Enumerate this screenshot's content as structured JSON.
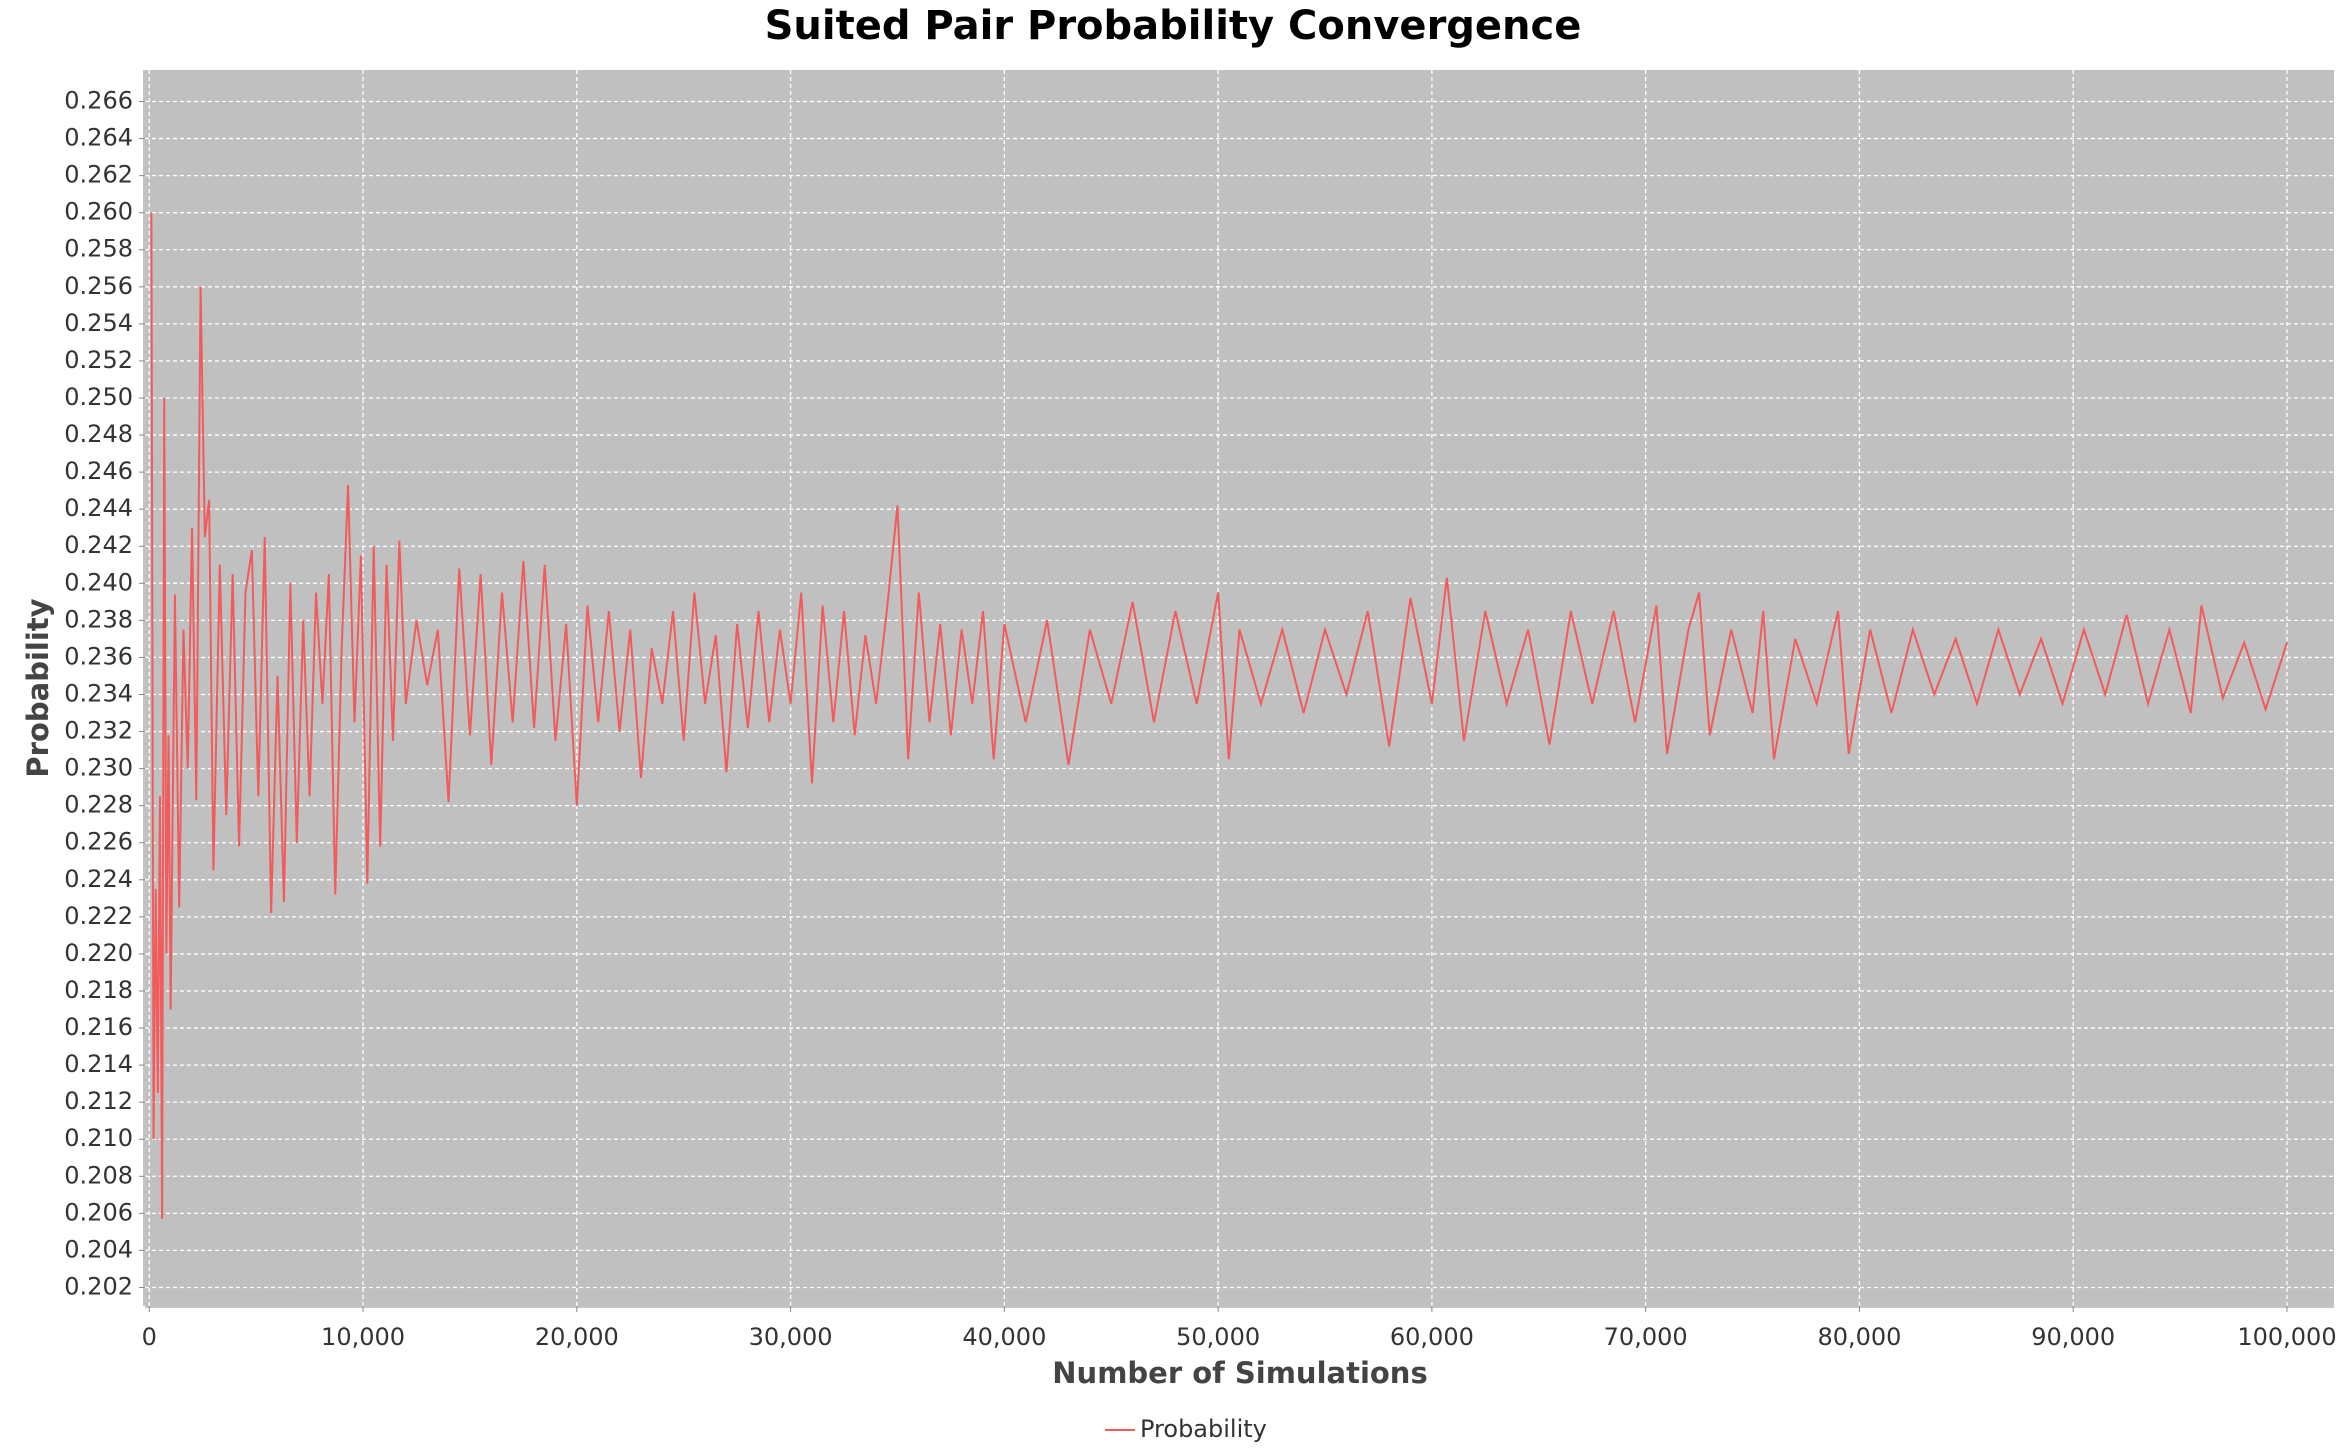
{
  "chart_data": {
    "type": "line",
    "title": "Suited Pair Probability Convergence",
    "x_label": "Number of Simulations",
    "y_label": "Probability",
    "x": [
      100,
      200,
      300,
      400,
      500,
      600,
      700,
      800,
      900,
      1000,
      1200,
      1400,
      1600,
      1800,
      2000,
      2200,
      2400,
      2600,
      2800,
      3000,
      3300,
      3600,
      3900,
      4200,
      4500,
      4800,
      5100,
      5400,
      5700,
      6000,
      6300,
      6600,
      6900,
      7200,
      7500,
      7800,
      8100,
      8400,
      8700,
      9000,
      9300,
      9600,
      9900,
      10200,
      10500,
      10800,
      11100,
      11400,
      11700,
      12000,
      12500,
      13000,
      13500,
      14000,
      14500,
      15000,
      15500,
      16000,
      16500,
      17000,
      17500,
      18000,
      18500,
      19000,
      19500,
      20000,
      20500,
      21000,
      21500,
      22000,
      22500,
      23000,
      23500,
      24000,
      24500,
      25000,
      25500,
      26000,
      26500,
      27000,
      27500,
      28000,
      28500,
      29000,
      29500,
      30000,
      30500,
      31000,
      31500,
      32000,
      32500,
      33000,
      33500,
      34000,
      34500,
      35000,
      35500,
      36000,
      36500,
      37000,
      37500,
      38000,
      38500,
      39000,
      39500,
      40000,
      41000,
      42000,
      43000,
      44000,
      45000,
      46000,
      47000,
      48000,
      49000,
      50000,
      50500,
      51000,
      52000,
      53000,
      54000,
      55000,
      56000,
      57000,
      58000,
      59000,
      60000,
      60700,
      61500,
      62500,
      63500,
      64500,
      65500,
      66500,
      67500,
      68500,
      69500,
      70500,
      71000,
      72000,
      72500,
      73000,
      74000,
      75000,
      75500,
      76000,
      77000,
      78000,
      79000,
      79500,
      80500,
      81500,
      82500,
      83500,
      84500,
      85500,
      86500,
      87500,
      88500,
      89500,
      90500,
      91500,
      92500,
      93500,
      94500,
      95500,
      96000,
      97000,
      98000,
      99000,
      100000
    ],
    "series": [
      {
        "name": "Probability",
        "color": "#f25b5b",
        "values": [
          0.26,
          0.21,
          0.2235,
          0.2125,
          0.2285,
          0.2057,
          0.25,
          0.22,
          0.2318,
          0.217,
          0.2394,
          0.2225,
          0.2375,
          0.23,
          0.243,
          0.2283,
          0.256,
          0.2425,
          0.2445,
          0.2245,
          0.241,
          0.2275,
          0.2405,
          0.2258,
          0.2395,
          0.2418,
          0.2285,
          0.2425,
          0.2222,
          0.235,
          0.2228,
          0.24,
          0.226,
          0.238,
          0.2285,
          0.2395,
          0.2335,
          0.2405,
          0.2232,
          0.2365,
          0.2453,
          0.2325,
          0.2415,
          0.2238,
          0.242,
          0.2258,
          0.241,
          0.2315,
          0.2423,
          0.2335,
          0.238,
          0.2345,
          0.2375,
          0.2282,
          0.2408,
          0.2318,
          0.2405,
          0.2302,
          0.2395,
          0.2325,
          0.2412,
          0.2322,
          0.241,
          0.2315,
          0.2378,
          0.228,
          0.2388,
          0.2325,
          0.2385,
          0.232,
          0.2375,
          0.2295,
          0.2365,
          0.2335,
          0.2385,
          0.2315,
          0.2395,
          0.2335,
          0.2372,
          0.2298,
          0.2378,
          0.2322,
          0.2385,
          0.2325,
          0.2375,
          0.2335,
          0.2395,
          0.2292,
          0.2388,
          0.2325,
          0.2385,
          0.2318,
          0.2372,
          0.2335,
          0.2385,
          0.2442,
          0.2305,
          0.2395,
          0.2325,
          0.2378,
          0.2318,
          0.2375,
          0.2335,
          0.2385,
          0.2305,
          0.2378,
          0.2325,
          0.238,
          0.2302,
          0.2375,
          0.2335,
          0.239,
          0.2325,
          0.2385,
          0.2335,
          0.2395,
          0.2305,
          0.2375,
          0.2335,
          0.2375,
          0.233,
          0.2375,
          0.234,
          0.2385,
          0.2312,
          0.2392,
          0.2335,
          0.2403,
          0.2315,
          0.2385,
          0.2335,
          0.2375,
          0.2313,
          0.2385,
          0.2335,
          0.2385,
          0.2325,
          0.2388,
          0.2308,
          0.2375,
          0.2395,
          0.2318,
          0.2375,
          0.233,
          0.2385,
          0.2305,
          0.237,
          0.2335,
          0.2385,
          0.2308,
          0.2375,
          0.233,
          0.2375,
          0.234,
          0.237,
          0.2335,
          0.2375,
          0.234,
          0.237,
          0.2335,
          0.2375,
          0.234,
          0.2383,
          0.2335,
          0.2375,
          0.233,
          0.2388,
          0.2338,
          0.2368,
          0.2332,
          0.2368
        ]
      }
    ],
    "xlim": [
      -200,
      102200
    ],
    "ylim": [
      0.201,
      0.2677
    ],
    "xticks": [
      0,
      {
        "value": 10000,
        "label": "10,000"
      },
      {
        "value": 20000,
        "label": "20,000"
      },
      {
        "value": 30000,
        "label": "30,000"
      },
      {
        "value": 40000,
        "label": "40,000"
      },
      {
        "value": 50000,
        "label": "50,000"
      },
      {
        "value": 60000,
        "label": "60,000"
      },
      {
        "value": 70000,
        "label": "70,000"
      },
      {
        "value": 80000,
        "label": "80,000"
      },
      {
        "value": 90000,
        "label": "90,000"
      },
      {
        "value": 100000,
        "label": "100,000"
      }
    ],
    "yticks": [
      0.202,
      0.204,
      0.206,
      0.208,
      {
        "value": 0.21,
        "label": "0.210"
      },
      0.212,
      0.214,
      0.216,
      0.218,
      {
        "value": 0.22,
        "label": "0.220"
      },
      0.222,
      0.224,
      0.226,
      0.228,
      {
        "value": 0.23,
        "label": "0.230"
      },
      0.232,
      0.234,
      0.236,
      0.238,
      {
        "value": 0.24,
        "label": "0.240"
      },
      0.242,
      0.244,
      0.246,
      0.248,
      {
        "value": 0.25,
        "label": "0.250"
      },
      0.252,
      0.254,
      0.256,
      0.258,
      {
        "value": 0.26,
        "label": "0.260"
      },
      0.262,
      0.264,
      0.266
    ],
    "grid": true,
    "legend": "bottom"
  }
}
